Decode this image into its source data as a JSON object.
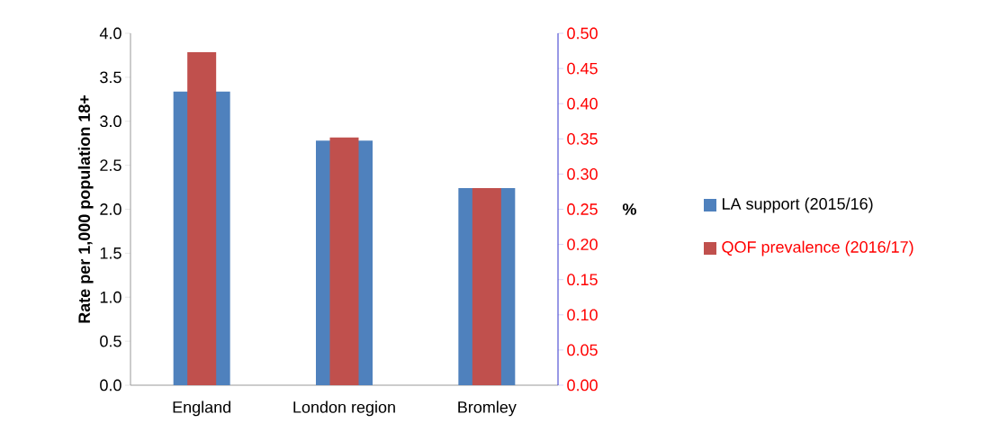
{
  "chart_data": {
    "type": "bar",
    "categories": [
      "England",
      "London region",
      "Bromley"
    ],
    "series": [
      {
        "name": "LA support (2015/16)",
        "color": "#4f81bd",
        "values": [
          3.34,
          2.78,
          2.24
        ]
      },
      {
        "name": "QOF prevalence (2016/17)",
        "color": "#c0504d",
        "values": [
          0.473,
          0.352,
          0.28
        ],
        "axis": "y2"
      }
    ],
    "ylabel": "Rate per 1,000 population 18+",
    "y2label": "%",
    "ylim": [
      0,
      4.0
    ],
    "yticks": [
      {
        "value": 0,
        "label": "0.0"
      },
      {
        "value": 0.5,
        "label": "0.5"
      },
      {
        "value": 1.0,
        "label": "1.0"
      },
      {
        "value": 1.5,
        "label": "1.5"
      },
      {
        "value": 2.0,
        "label": "2.0"
      },
      {
        "value": 2.5,
        "label": "2.5"
      },
      {
        "value": 3.0,
        "label": "3.0"
      },
      {
        "value": 3.5,
        "label": "3.5"
      },
      {
        "value": 4.0,
        "label": "4.0"
      }
    ],
    "y2lim": [
      0,
      0.5
    ],
    "y2ticks": [
      {
        "value": 0,
        "label": "0.00"
      },
      {
        "value": 0.05,
        "label": "0.05"
      },
      {
        "value": 0.1,
        "label": "0.10"
      },
      {
        "value": 0.15,
        "label": "0.15"
      },
      {
        "value": 0.2,
        "label": "0.20"
      },
      {
        "value": 0.25,
        "label": "0.25"
      },
      {
        "value": 0.3,
        "label": "0.30"
      },
      {
        "value": 0.35,
        "label": "0.35"
      },
      {
        "value": 0.4,
        "label": "0.40"
      },
      {
        "value": 0.45,
        "label": "0.45"
      },
      {
        "value": 0.5,
        "label": "0.50"
      }
    ],
    "grid": false,
    "legend": "right"
  }
}
